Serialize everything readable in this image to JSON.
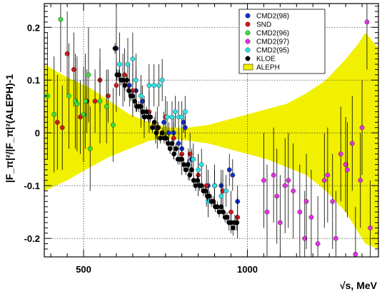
{
  "chart_data": {
    "type": "scatter",
    "title": "",
    "xlabel": "√s, MeV",
    "ylabel": "|F_π|²/|F_π|²(ALEPH)-1",
    "xlim": [
      380,
      1400
    ],
    "ylim": [
      -0.235,
      0.245
    ],
    "grid": true,
    "legend_position": "top-right",
    "x_ticks": [
      {
        "v": 500,
        "label": "500"
      },
      {
        "v": 1000,
        "label": "1000"
      }
    ],
    "y_ticks": [
      {
        "v": -0.2,
        "label": "-0.2"
      },
      {
        "v": -0.1,
        "label": "-0.1"
      },
      {
        "v": 0,
        "label": "0"
      },
      {
        "v": 0.1,
        "label": "0.1"
      },
      {
        "v": 0.2,
        "label": "0.2"
      }
    ],
    "band": {
      "name": "ALEPH",
      "color": "#f0f000",
      "x": [
        380,
        450,
        520,
        580,
        640,
        700,
        760,
        820,
        880,
        940,
        1000,
        1060,
        1120,
        1180,
        1240,
        1300,
        1340,
        1360,
        1400
      ],
      "upper": [
        0.13,
        0.105,
        0.085,
        0.06,
        0.035,
        0.02,
        0.01,
        0.01,
        0.015,
        0.025,
        0.035,
        0.045,
        0.055,
        0.075,
        0.1,
        0.14,
        0.17,
        0.19,
        0.16
      ],
      "lower": [
        -0.11,
        -0.09,
        -0.065,
        -0.045,
        -0.03,
        -0.015,
        -0.01,
        -0.015,
        -0.02,
        -0.03,
        -0.04,
        -0.05,
        -0.065,
        -0.08,
        -0.11,
        -0.15,
        -0.19,
        -0.21,
        -0.22
      ]
    },
    "series": [
      {
        "name": "CMD2(98)",
        "color": "#1030c8",
        "x": [
          600,
          620,
          640,
          660,
          680,
          720,
          745,
          760,
          775,
          790,
          800,
          805,
          810,
          830,
          880,
          900,
          920,
          945,
          955,
          970
        ],
        "y": [
          0.16,
          0.1,
          0.09,
          0.08,
          0.06,
          0.01,
          0.02,
          0.0,
          0.0,
          -0.02,
          -0.03,
          0.02,
          0.01,
          -0.05,
          -0.1,
          -0.1,
          -0.1,
          -0.07,
          -0.08,
          -0.13
        ],
        "err": [
          0.09,
          0.05,
          0.04,
          0.04,
          0.03,
          0.03,
          0.02,
          0.02,
          0.02,
          0.02,
          0.02,
          0.02,
          0.02,
          0.02,
          0.03,
          0.03,
          0.03,
          0.03,
          0.03,
          0.03
        ]
      },
      {
        "name": "SND",
        "color": "#d01818",
        "x": [
          420,
          435,
          450,
          470,
          490,
          510,
          535,
          550,
          575,
          600,
          625,
          650,
          675,
          700,
          725,
          750,
          775,
          800,
          825,
          850,
          875,
          900,
          925,
          950,
          970
        ],
        "y": [
          0.02,
          0.01,
          0.15,
          0.12,
          0.03,
          0.06,
          0.06,
          0.1,
          0.07,
          0.09,
          0.11,
          0.08,
          0.05,
          0.04,
          0.01,
          0.03,
          -0.01,
          -0.04,
          -0.04,
          -0.08,
          -0.1,
          -0.1,
          -0.11,
          -0.15,
          -0.16
        ],
        "err": [
          0.09,
          0.08,
          0.08,
          0.07,
          0.07,
          0.06,
          0.06,
          0.06,
          0.05,
          0.05,
          0.05,
          0.05,
          0.04,
          0.04,
          0.04,
          0.04,
          0.04,
          0.04,
          0.04,
          0.04,
          0.04,
          0.04,
          0.04,
          0.04,
          0.04
        ]
      },
      {
        "name": "CMD2(96)",
        "color": "#38e038",
        "x": [
          390,
          410,
          430,
          455,
          475,
          480,
          500,
          505,
          515,
          520,
          550,
          570,
          590
        ],
        "y": [
          0.07,
          0.035,
          0.215,
          0.07,
          0.06,
          0.055,
          0.035,
          0.06,
          0.11,
          -0.03,
          0.06,
          0.05,
          0.015
        ],
        "err": [
          0.12,
          0.11,
          0.1,
          0.1,
          0.09,
          0.09,
          0.09,
          0.09,
          0.09,
          0.08,
          0.08,
          0.07,
          0.07
        ]
      },
      {
        "name": "CMD2(97)",
        "color": "#e030e0",
        "x": [
          1050,
          1060,
          1080,
          1090,
          1100,
          1115,
          1125,
          1140,
          1160,
          1175,
          1180,
          1195,
          1215,
          1235,
          1245,
          1260,
          1270,
          1285,
          1300,
          1305,
          1320,
          1330,
          1345,
          1350,
          1365,
          1375
        ],
        "y": [
          -0.09,
          -0.15,
          -0.08,
          -0.12,
          -0.17,
          -0.1,
          -0.09,
          -0.11,
          -0.15,
          -0.2,
          -0.13,
          -0.16,
          -0.21,
          -0.09,
          -0.08,
          -0.13,
          -0.2,
          -0.04,
          -0.06,
          -0.07,
          -0.02,
          -0.23,
          -0.09,
          0.01,
          0.21,
          -0.18
        ],
        "err": [
          0.09,
          0.09,
          0.09,
          0.09,
          0.09,
          0.09,
          0.09,
          0.09,
          0.09,
          0.09,
          0.09,
          0.09,
          0.09,
          0.09,
          0.09,
          0.09,
          0.09,
          0.09,
          0.09,
          0.09,
          0.09,
          0.09,
          0.09,
          0.09,
          0.09,
          0.09
        ]
      },
      {
        "name": "CMD2(95)",
        "color": "#30e0e0",
        "x": [
          610,
          635,
          650,
          660,
          675,
          685,
          700,
          715,
          730,
          740,
          755,
          770,
          780,
          790,
          800,
          810,
          820,
          835,
          850,
          860,
          880,
          900,
          920,
          935
        ],
        "y": [
          0.13,
          0.13,
          0.14,
          0.1,
          0.07,
          0.03,
          0.09,
          0.09,
          0.09,
          0.1,
          0.03,
          0.03,
          0.04,
          0.03,
          0.03,
          0.04,
          -0.06,
          -0.05,
          -0.07,
          -0.06,
          -0.13,
          -0.1,
          -0.12,
          -0.11
        ],
        "err": [
          0.06,
          0.05,
          0.05,
          0.05,
          0.04,
          0.04,
          0.04,
          0.04,
          0.04,
          0.04,
          0.03,
          0.03,
          0.03,
          0.03,
          0.03,
          0.03,
          0.03,
          0.03,
          0.03,
          0.03,
          0.03,
          0.03,
          0.03,
          0.03
        ]
      },
      {
        "name": "KLOE",
        "color": "#000000",
        "x": [
          596,
          602,
          608,
          614,
          620,
          626,
          632,
          638,
          644,
          650,
          656,
          662,
          668,
          674,
          680,
          686,
          692,
          698,
          704,
          710,
          716,
          722,
          728,
          734,
          740,
          746,
          752,
          758,
          764,
          770,
          776,
          782,
          788,
          794,
          800,
          806,
          812,
          818,
          824,
          830,
          836,
          842,
          848,
          854,
          860,
          866,
          872,
          878,
          884,
          890,
          896,
          902,
          908,
          914,
          920,
          926,
          932,
          938,
          944,
          950,
          956,
          962,
          968
        ],
        "y": [
          0.16,
          0.11,
          0.11,
          0.1,
          0.1,
          0.09,
          0.1,
          0.08,
          0.07,
          0.07,
          0.06,
          0.05,
          0.05,
          0.05,
          0.04,
          0.03,
          0.04,
          0.03,
          0.03,
          0.01,
          0.02,
          0.0,
          0.01,
          -0.01,
          0.0,
          -0.01,
          -0.01,
          -0.02,
          -0.03,
          -0.02,
          -0.04,
          -0.03,
          -0.05,
          -0.05,
          -0.05,
          -0.06,
          -0.07,
          -0.06,
          -0.08,
          -0.07,
          -0.09,
          -0.1,
          -0.09,
          -0.1,
          -0.1,
          -0.11,
          -0.11,
          -0.12,
          -0.12,
          -0.13,
          -0.13,
          -0.14,
          -0.14,
          -0.15,
          -0.14,
          -0.15,
          -0.16,
          -0.16,
          -0.17,
          -0.17,
          -0.18,
          -0.17,
          -0.17
        ],
        "err": [
          0.01,
          0.01,
          0.01,
          0.01,
          0.01,
          0.01,
          0.01,
          0.01,
          0.01,
          0.01,
          0.01,
          0.01,
          0.01,
          0.01,
          0.01,
          0.01,
          0.01,
          0.01,
          0.01,
          0.01,
          0.01,
          0.01,
          0.01,
          0.01,
          0.01,
          0.01,
          0.01,
          0.01,
          0.01,
          0.01,
          0.01,
          0.01,
          0.01,
          0.01,
          0.01,
          0.01,
          0.01,
          0.01,
          0.01,
          0.01,
          0.01,
          0.01,
          0.01,
          0.01,
          0.01,
          0.01,
          0.01,
          0.01,
          0.01,
          0.01,
          0.01,
          0.01,
          0.01,
          0.01,
          0.01,
          0.01,
          0.01,
          0.01,
          0.015,
          0.015,
          0.015,
          0.015,
          0.015
        ]
      }
    ]
  }
}
